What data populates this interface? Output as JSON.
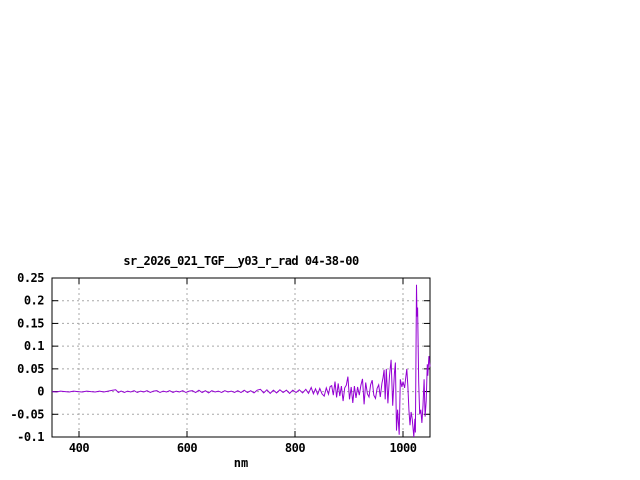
{
  "window": {
    "background": "#ffffff"
  },
  "chart_data": {
    "type": "line",
    "title": "sr_2026_021_TGF__y03_r_rad 04-38-00",
    "xlabel": "nm",
    "ylabel": "",
    "xlim": [
      350,
      1050
    ],
    "ylim": [
      -0.1,
      0.25
    ],
    "x_ticks": [
      400,
      600,
      800,
      1000
    ],
    "x_tick_labels": [
      "400",
      "600",
      "800",
      "1000"
    ],
    "y_ticks": [
      0.25,
      0.2,
      0.15,
      0.1,
      0.05,
      0,
      -0.05,
      -0.1
    ],
    "y_tick_labels": [
      "0.25",
      "0.2",
      "0.15",
      "0.1",
      "0.05",
      "0",
      "-0.05",
      "-0.1"
    ],
    "grid": true,
    "legend_position": "none",
    "border_color": "#000000",
    "grid_color": "#a8a8a8",
    "line_color": "#9400d3",
    "series": [
      {
        "name": "sr_2026_021_TGF__y03_r_rad 04-38-00",
        "color": "#9400d3",
        "points": [
          [
            350,
            0.0
          ],
          [
            358,
            -0.001
          ],
          [
            366,
            0.001
          ],
          [
            374,
            0.0
          ],
          [
            382,
            -0.001
          ],
          [
            390,
            0.001
          ],
          [
            398,
            0.0
          ],
          [
            406,
            -0.001
          ],
          [
            414,
            0.001
          ],
          [
            422,
            0.0
          ],
          [
            430,
            -0.001
          ],
          [
            438,
            0.001
          ],
          [
            446,
            -0.001
          ],
          [
            454,
            0.001
          ],
          [
            462,
            0.003
          ],
          [
            468,
            0.004
          ],
          [
            473,
            -0.002
          ],
          [
            478,
            0.001
          ],
          [
            484,
            -0.002
          ],
          [
            490,
            0.001
          ],
          [
            496,
            -0.001
          ],
          [
            502,
            0.002
          ],
          [
            508,
            -0.002
          ],
          [
            514,
            0.001
          ],
          [
            520,
            -0.001
          ],
          [
            526,
            0.002
          ],
          [
            532,
            -0.002
          ],
          [
            538,
            0.001
          ],
          [
            544,
            0.002
          ],
          [
            550,
            -0.002
          ],
          [
            556,
            0.001
          ],
          [
            562,
            -0.001
          ],
          [
            568,
            0.002
          ],
          [
            574,
            -0.002
          ],
          [
            580,
            0.001
          ],
          [
            586,
            -0.001
          ],
          [
            592,
            0.002
          ],
          [
            598,
            -0.002
          ],
          [
            604,
            0.001
          ],
          [
            610,
            0.002
          ],
          [
            616,
            -0.002
          ],
          [
            622,
            0.003
          ],
          [
            628,
            -0.002
          ],
          [
            634,
            0.002
          ],
          [
            640,
            -0.003
          ],
          [
            646,
            0.002
          ],
          [
            652,
            -0.001
          ],
          [
            658,
            0.001
          ],
          [
            664,
            -0.002
          ],
          [
            670,
            0.002
          ],
          [
            676,
            -0.001
          ],
          [
            682,
            0.001
          ],
          [
            688,
            -0.002
          ],
          [
            694,
            0.002
          ],
          [
            700,
            -0.002
          ],
          [
            706,
            0.003
          ],
          [
            712,
            -0.002
          ],
          [
            718,
            0.002
          ],
          [
            724,
            -0.003
          ],
          [
            730,
            0.003
          ],
          [
            736,
            0.005
          ],
          [
            742,
            -0.003
          ],
          [
            748,
            0.004
          ],
          [
            754,
            -0.004
          ],
          [
            760,
            0.003
          ],
          [
            766,
            -0.003
          ],
          [
            772,
            0.004
          ],
          [
            778,
            -0.002
          ],
          [
            784,
            0.003
          ],
          [
            790,
            -0.004
          ],
          [
            796,
            0.003
          ],
          [
            802,
            -0.002
          ],
          [
            808,
            0.004
          ],
          [
            814,
            -0.003
          ],
          [
            820,
            0.005
          ],
          [
            825,
            -0.004
          ],
          [
            830,
            0.009
          ],
          [
            834,
            -0.005
          ],
          [
            838,
            0.006
          ],
          [
            842,
            -0.006
          ],
          [
            846,
            0.007
          ],
          [
            850,
            -0.005
          ],
          [
            854,
            -0.01
          ],
          [
            858,
            0.008
          ],
          [
            862,
            -0.006
          ],
          [
            865,
            0.011
          ],
          [
            868,
            0.013
          ],
          [
            871,
            -0.008
          ],
          [
            874,
            0.022
          ],
          [
            877,
            -0.013
          ],
          [
            880,
            0.018
          ],
          [
            883,
            -0.01
          ],
          [
            886,
            0.012
          ],
          [
            889,
            -0.021
          ],
          [
            892,
            0.008
          ],
          [
            895,
            0.014
          ],
          [
            898,
            0.033
          ],
          [
            901,
            -0.017
          ],
          [
            904,
            0.01
          ],
          [
            907,
            -0.025
          ],
          [
            910,
            0.012
          ],
          [
            913,
            -0.014
          ],
          [
            916,
            0.01
          ],
          [
            919,
            -0.008
          ],
          [
            922,
            0.014
          ],
          [
            925,
            0.028
          ],
          [
            928,
            -0.028
          ],
          [
            931,
            0.02
          ],
          [
            934,
            -0.005
          ],
          [
            937,
            -0.012
          ],
          [
            940,
            0.015
          ],
          [
            943,
            0.025
          ],
          [
            946,
            -0.008
          ],
          [
            949,
            -0.015
          ],
          [
            952,
            0.007
          ],
          [
            955,
            0.015
          ],
          [
            958,
            -0.012
          ],
          [
            961,
            0.018
          ],
          [
            963,
            0.03
          ],
          [
            965,
            0.048
          ],
          [
            967,
            -0.017
          ],
          [
            969,
            0.05
          ],
          [
            972,
            -0.026
          ],
          [
            975,
            0.035
          ],
          [
            978,
            0.07
          ],
          [
            981,
            -0.031
          ],
          [
            984,
            0.04
          ],
          [
            986,
            0.064
          ],
          [
            988,
            -0.086
          ],
          [
            990,
            -0.04
          ],
          [
            993,
            -0.095
          ],
          [
            995,
            0.027
          ],
          [
            998,
            0.01
          ],
          [
            1000,
            0.022
          ],
          [
            1003,
            0.008
          ],
          [
            1005,
            0.03
          ],
          [
            1007,
            0.05
          ],
          [
            1009,
            0.01
          ],
          [
            1011,
            -0.04
          ],
          [
            1013,
            -0.074
          ],
          [
            1015,
            -0.045
          ],
          [
            1017,
            -0.06
          ],
          [
            1019,
            -0.087
          ],
          [
            1020,
            -0.1
          ],
          [
            1022,
            -0.06
          ],
          [
            1023,
            -0.09
          ],
          [
            1025,
            0.235
          ],
          [
            1026,
            0.165
          ],
          [
            1027,
            0.185
          ],
          [
            1029,
            0.02
          ],
          [
            1031,
            -0.05
          ],
          [
            1033,
            -0.04
          ],
          [
            1035,
            -0.069
          ],
          [
            1037,
            -0.03
          ],
          [
            1039,
            0.027
          ],
          [
            1041,
            -0.055
          ],
          [
            1043,
            -0.02
          ],
          [
            1045,
            0.06
          ],
          [
            1046,
            0.035
          ],
          [
            1048,
            0.078
          ],
          [
            1050,
            0.055
          ]
        ]
      }
    ]
  }
}
